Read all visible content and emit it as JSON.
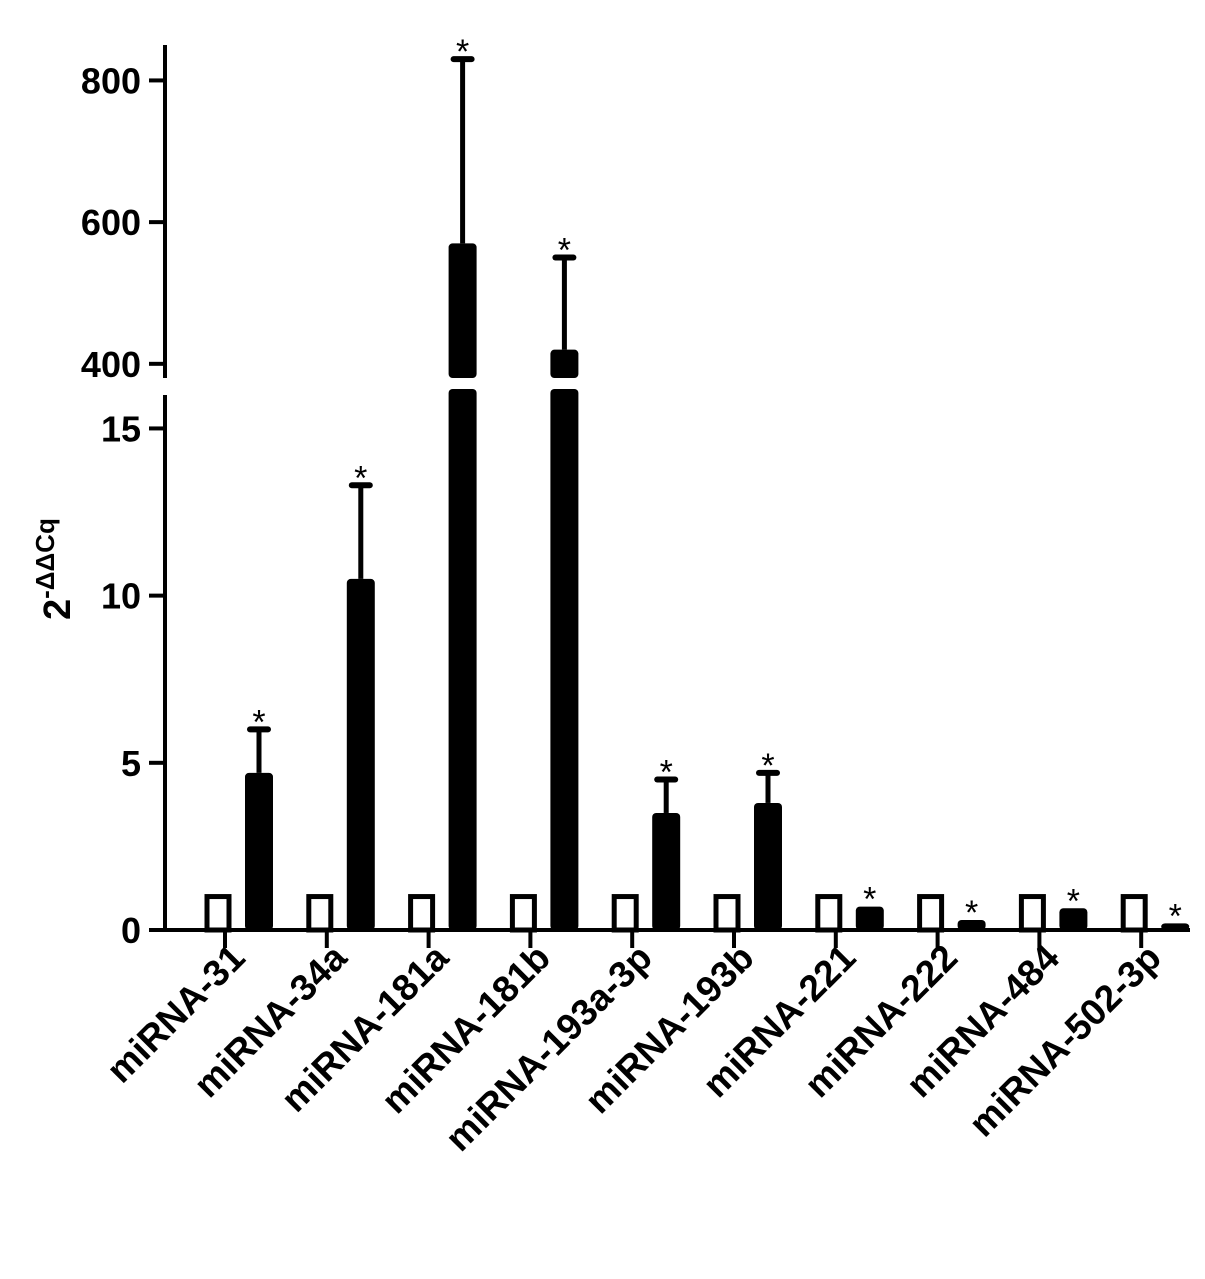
{
  "chart_data": {
    "type": "bar",
    "categories": [
      "miRNA-31",
      "miRNA-34a",
      "miRNA-181a",
      "miRNA-181b",
      "miRNA-193a-3p",
      "miRNA-193b",
      "miRNA-221",
      "miRNA-222",
      "miRNA-484",
      "miRNA-502-3p"
    ],
    "series": [
      {
        "values": [
          1,
          1,
          1,
          1,
          1,
          1,
          1,
          1,
          1,
          1
        ],
        "color": "#ffffff",
        "outline": "#000000"
      },
      {
        "values": [
          4.7,
          10.5,
          570,
          420,
          3.5,
          3.8,
          0.7,
          0.3,
          0.65,
          0.2
        ],
        "error_upper": [
          6.0,
          13.3,
          830,
          550,
          4.5,
          4.7,
          0.7,
          0.3,
          0.65,
          0.2
        ],
        "significance": [
          "*",
          "*",
          "*",
          "*",
          "*",
          "*",
          "*",
          "*",
          "*",
          "*"
        ],
        "color": "#000000"
      }
    ],
    "ylabel_base": "2",
    "ylabel_sup": "-ΔΔCq",
    "axis_break": true,
    "lower_segment": {
      "ylim": [
        0,
        16
      ],
      "ticks": [
        "0",
        "5",
        "10",
        "15"
      ]
    },
    "upper_segment": {
      "ylim": [
        380,
        850
      ],
      "ticks": [
        "400",
        "600",
        "800"
      ]
    },
    "grid": false,
    "legend": "none"
  }
}
